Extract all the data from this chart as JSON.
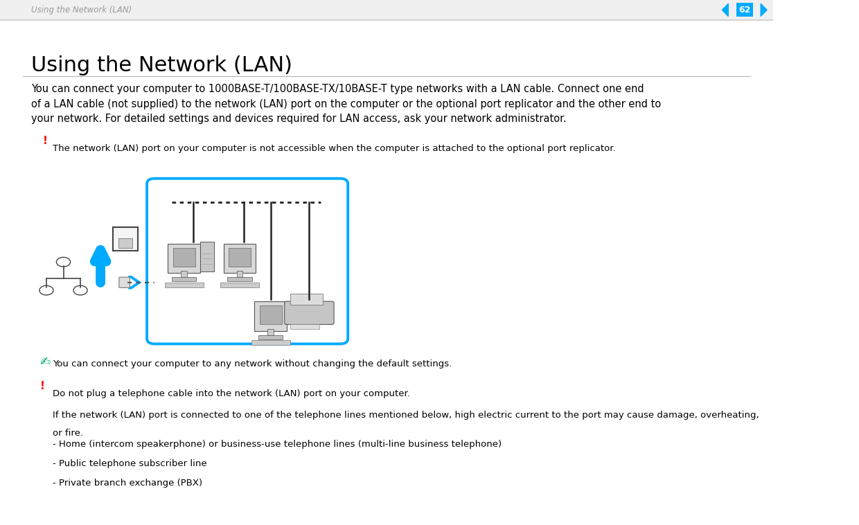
{
  "bg_color": "#ffffff",
  "header_text": "Using the Network (LAN)",
  "header_page": "62",
  "title": "Using the Network (LAN)",
  "title_fontsize": 22,
  "body_text": "You can connect your computer to 1000BASE-T/100BASE-TX/10BASE-T type networks with a LAN cable. Connect one end\nof a LAN cable (not supplied) to the network (LAN) port on the computer or the optional port replicator and the other end to\nyour network. For detailed settings and devices required for LAN access, ask your network administrator.",
  "body_fontsize": 10.5,
  "warn1_icon": "!",
  "warn1_color": "#ff0000",
  "warn1_text": "The network (LAN) port on your computer is not accessible when the computer is attached to the optional port replicator.",
  "warn1_fontsize": 9.5,
  "note1_text": "You can connect your computer to any network without changing the default settings.",
  "note1_fontsize": 9.5,
  "warn2_icon": "!",
  "warn2_color": "#ff0000",
  "warn2_line1": "Do not plug a telephone cable into the network (LAN) port on your computer.",
  "warn2_line2": "If the network (LAN) port is connected to one of the telephone lines mentioned below, high electric current to the port may cause damage, overheating,",
  "warn2_line3": "or fire.",
  "warn2_fontsize": 9.5,
  "bullet1": "- Home (intercom speakerphone) or business-use telephone lines (multi-line business telephone)",
  "bullet2": "- Public telephone subscriber line",
  "bullet3": "- Private branch exchange (PBX)",
  "bullet_fontsize": 9.5,
  "box_color": "#00aaff"
}
